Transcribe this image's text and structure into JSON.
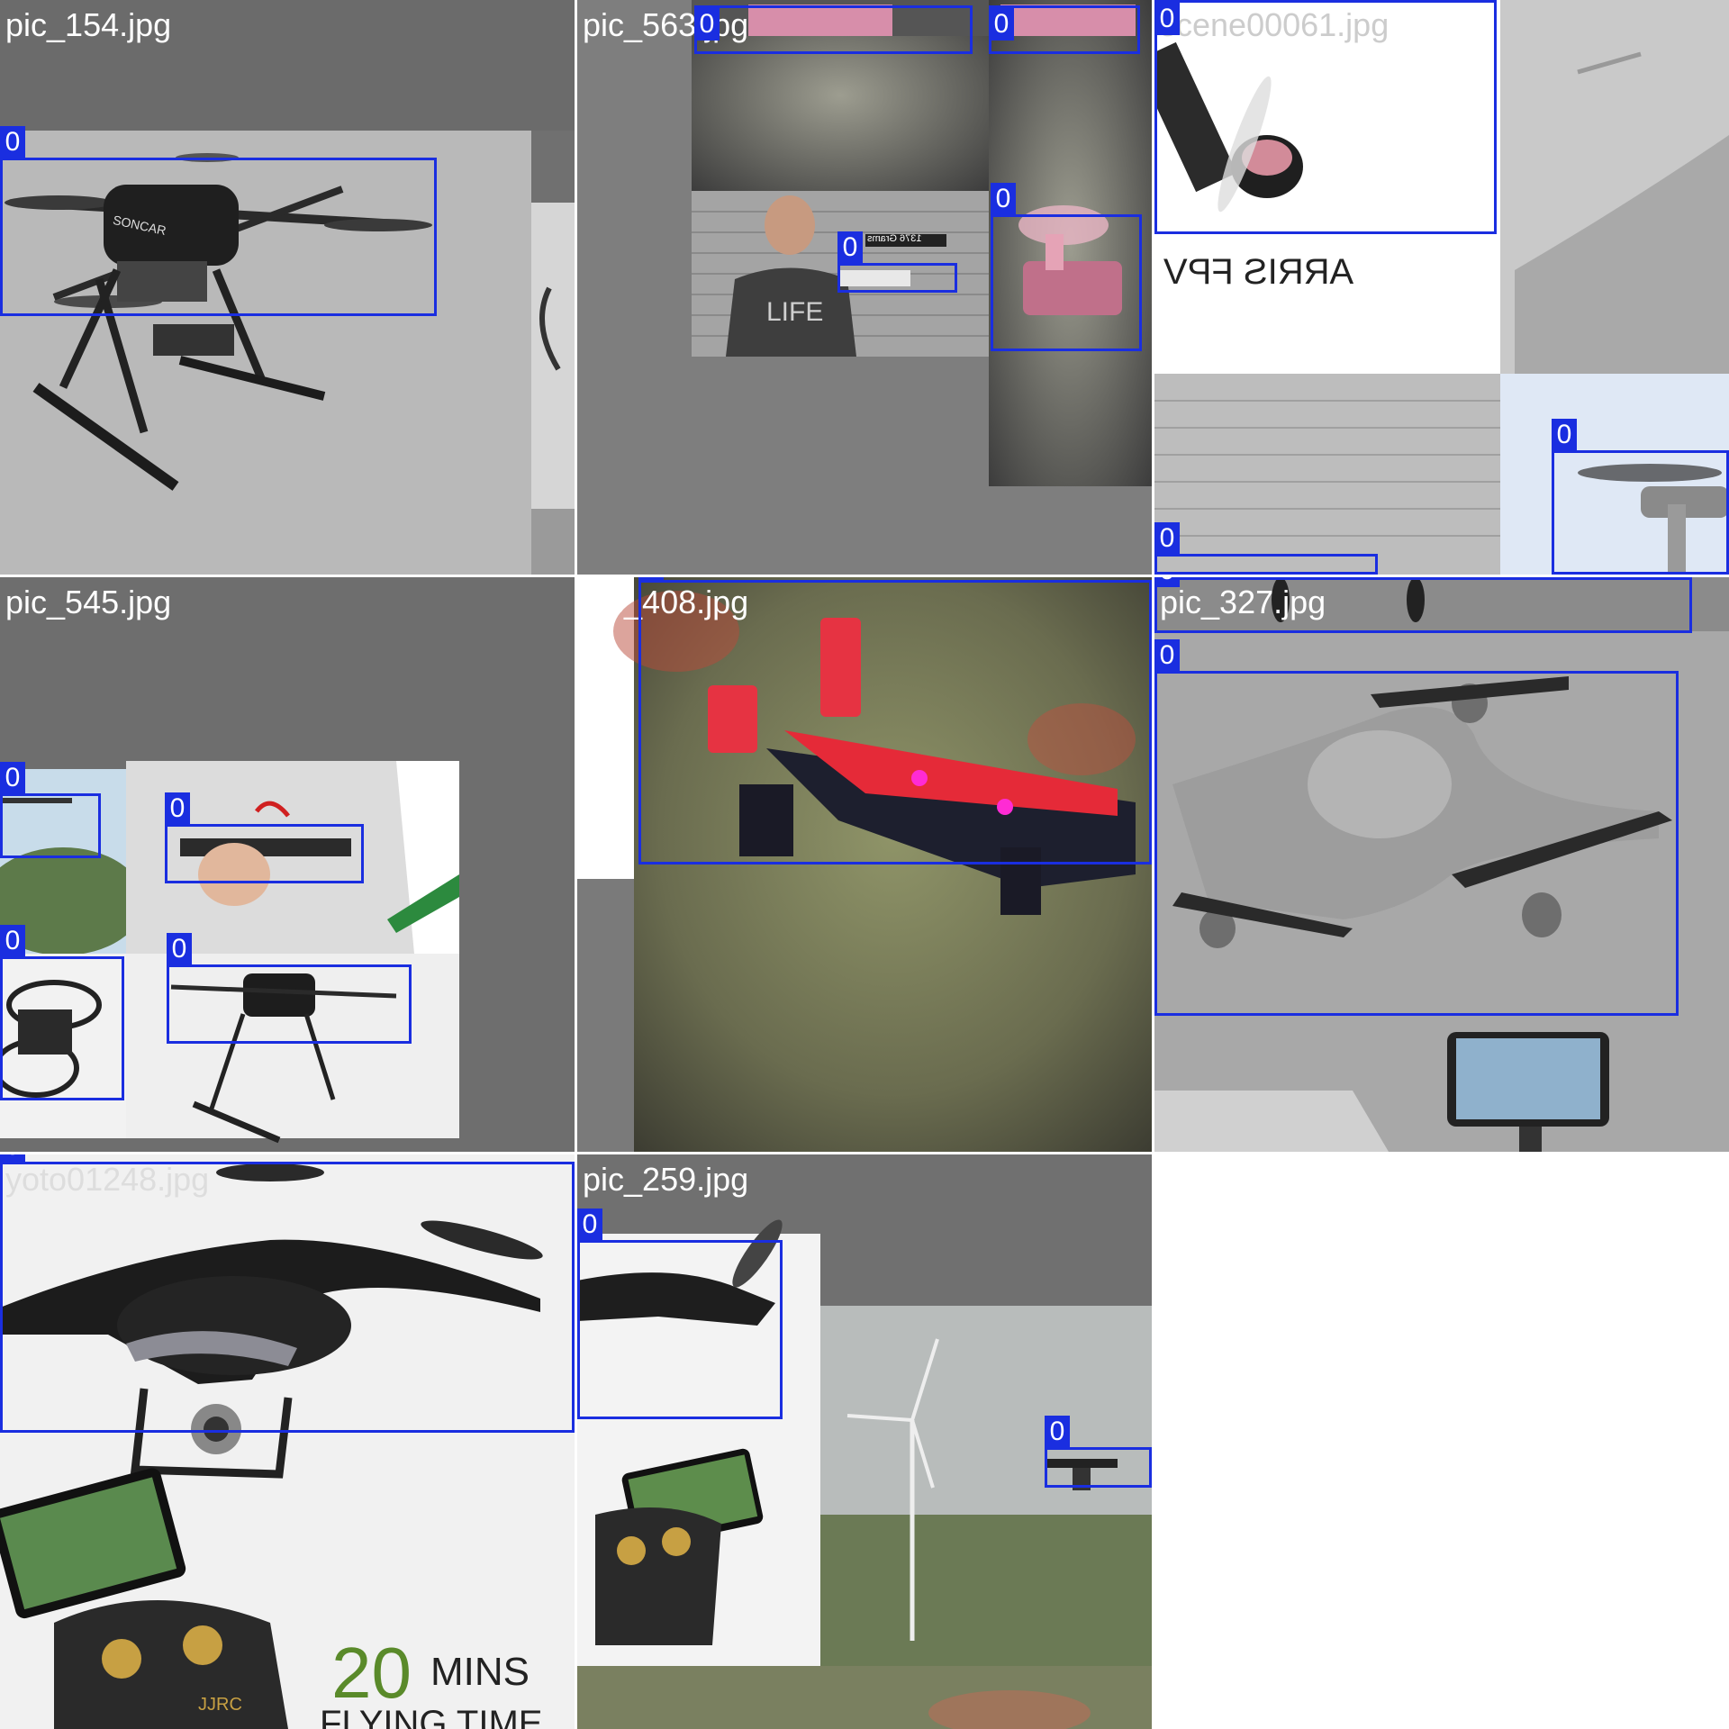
{
  "mosaic": {
    "tiles": [
      {
        "filename": "pic_154.jpg",
        "label_color": "#ffffff"
      },
      {
        "filename": "pic_563.jpg",
        "label_color": "#ffffff"
      },
      {
        "filename": "scene00061.jpg",
        "label_color": "#cccccc"
      },
      {
        "filename": "pic_545.jpg",
        "label_color": "#ffffff"
      },
      {
        "filename": "pic_408.jpg",
        "label_color": "#ffffff"
      },
      {
        "filename": "pic_327.jpg",
        "label_color": "#ffffff"
      },
      {
        "filename": "yoto01248.jpg",
        "label_color": "#dddddd"
      },
      {
        "filename": "pic_259.jpg",
        "label_color": "#ffffff"
      }
    ],
    "class_label": "0",
    "box_color": "#1a2ee0",
    "photo_text": {
      "drone_brand": "SONCAR",
      "tshirt": "LIFE",
      "weight_sign": "1376 Grams",
      "mirrored_banner": "ARRIS FPV",
      "flight_time_number": "20",
      "flight_time_unit": "MINS",
      "flight_time_caption": "FLYING TIME",
      "controller_brand": "JJRC"
    }
  }
}
